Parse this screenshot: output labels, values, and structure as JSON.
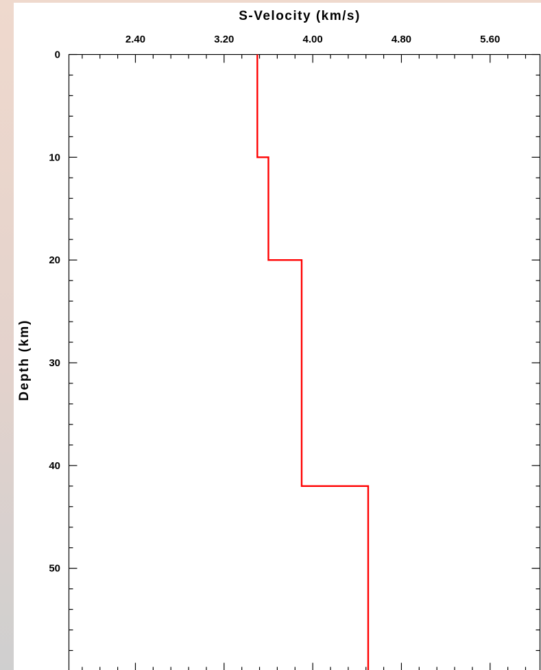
{
  "chart_data": {
    "type": "line",
    "title": "S-Velocity (km/s)",
    "xlabel": "S-Velocity (km/s)",
    "ylabel": "Depth (km)",
    "xlim": [
      1.8,
      6.05
    ],
    "ylim": [
      0,
      60
    ],
    "y_inverted": true,
    "x_tick_labels": [
      "2.40",
      "3.20",
      "4.00",
      "4.80",
      "5.60"
    ],
    "x_ticks": [
      2.4,
      3.2,
      4.0,
      4.8,
      5.6
    ],
    "y_tick_labels": [
      "0",
      "10",
      "20",
      "30",
      "40",
      "50"
    ],
    "y_ticks": [
      0,
      10,
      20,
      30,
      40,
      50
    ],
    "grid": false,
    "series": [
      {
        "color": "#ff0000",
        "x": [
          3.5,
          3.5,
          3.6,
          3.6,
          3.9,
          3.9,
          4.5,
          4.5
        ],
        "y": [
          0,
          10,
          10,
          20,
          20,
          42,
          42,
          60
        ]
      }
    ]
  }
}
